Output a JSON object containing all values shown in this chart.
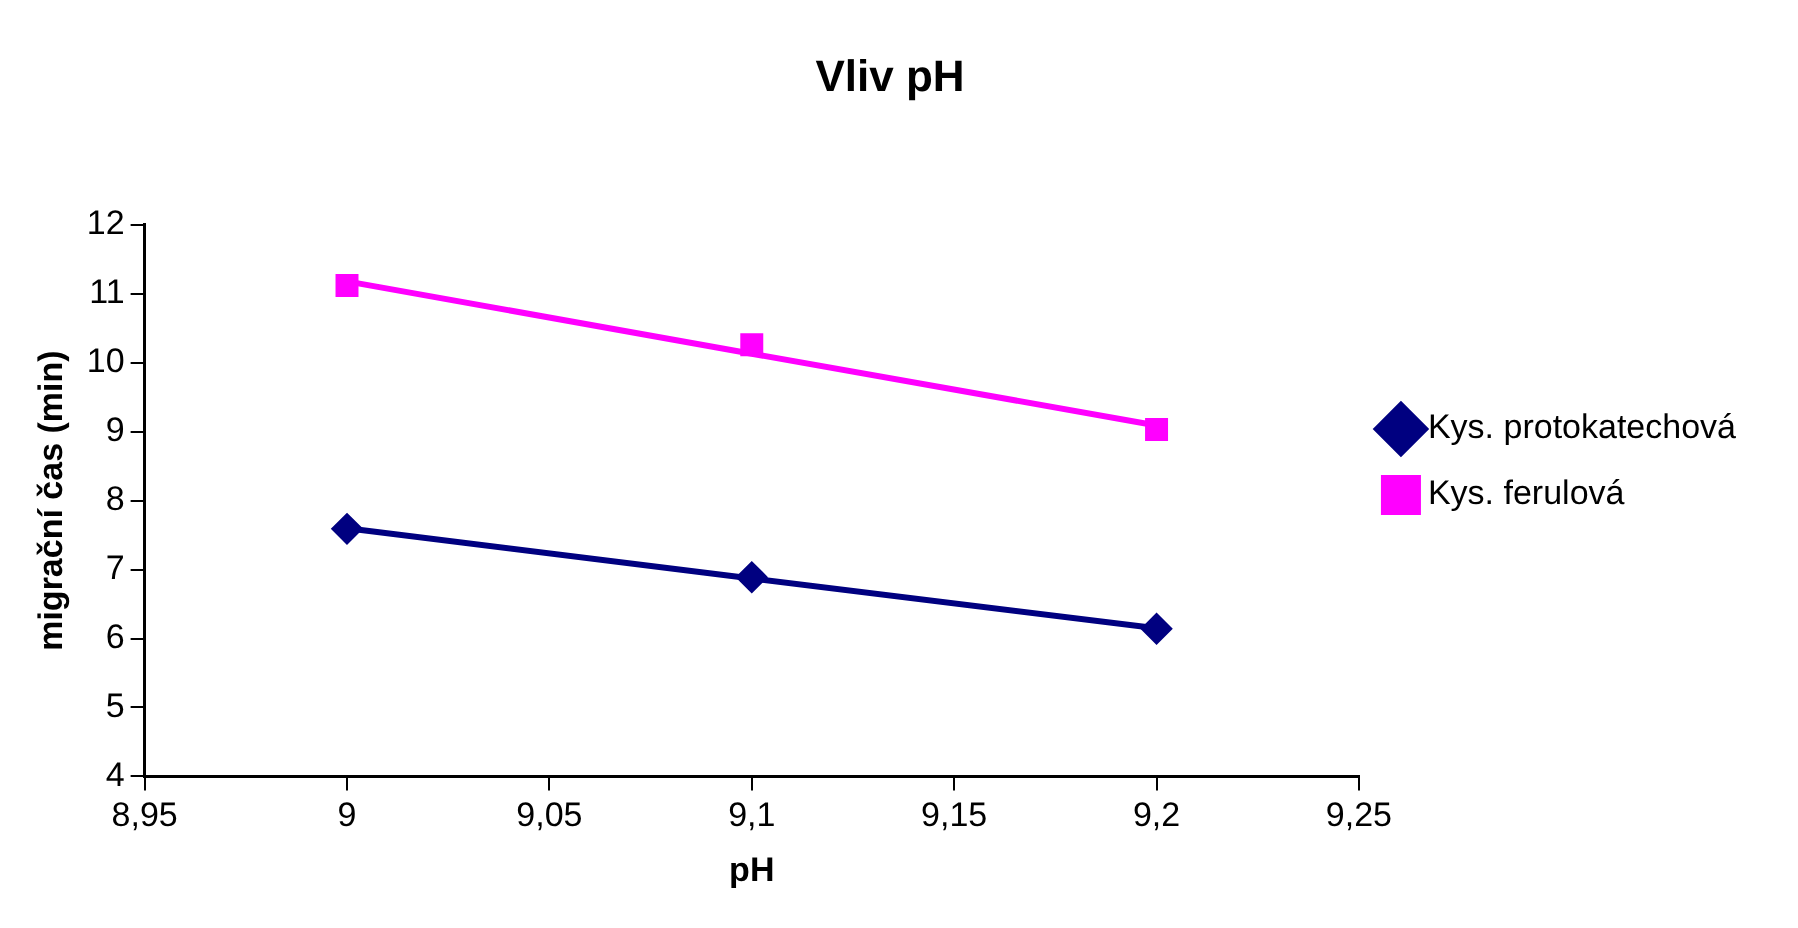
{
  "chart_data": {
    "type": "scatter",
    "title": "Vliv pH",
    "xlabel": "pH",
    "ylabel": "migrační čas (min)",
    "xlim": [
      8.95,
      9.25
    ],
    "xticks": [
      {
        "value": 8.95,
        "label": "8,95"
      },
      {
        "value": 9,
        "label": "9"
      },
      {
        "value": 9.05,
        "label": "9,05"
      },
      {
        "value": 9.1,
        "label": "9,1"
      },
      {
        "value": 9.15,
        "label": "9,15"
      },
      {
        "value": 9.2,
        "label": "9,2"
      },
      {
        "value": 9.25,
        "label": "9,25"
      }
    ],
    "ylim": [
      4,
      12
    ],
    "yticks": [
      4,
      5,
      6,
      7,
      8,
      9,
      10,
      11,
      12
    ],
    "grid": false,
    "legend": "right",
    "x": [
      9,
      9.1,
      9.2
    ],
    "series": [
      {
        "name": "Kys. protokatechová",
        "color": "#000080",
        "marker": "diamond",
        "values": [
          7.59,
          6.89,
          6.14
        ]
      },
      {
        "name": "Kys. ferulová",
        "color": "#ff00ff",
        "marker": "square",
        "values": [
          11.12,
          10.26,
          9.03
        ]
      },
      {
        "type": "line",
        "color": "#000080",
        "marker": "none",
        "values": [
          7.6,
          6.87,
          6.15
        ]
      },
      {
        "type": "line",
        "color": "#ff00ff",
        "marker": "none",
        "values": [
          11.18,
          10.13,
          9.09
        ]
      }
    ]
  }
}
